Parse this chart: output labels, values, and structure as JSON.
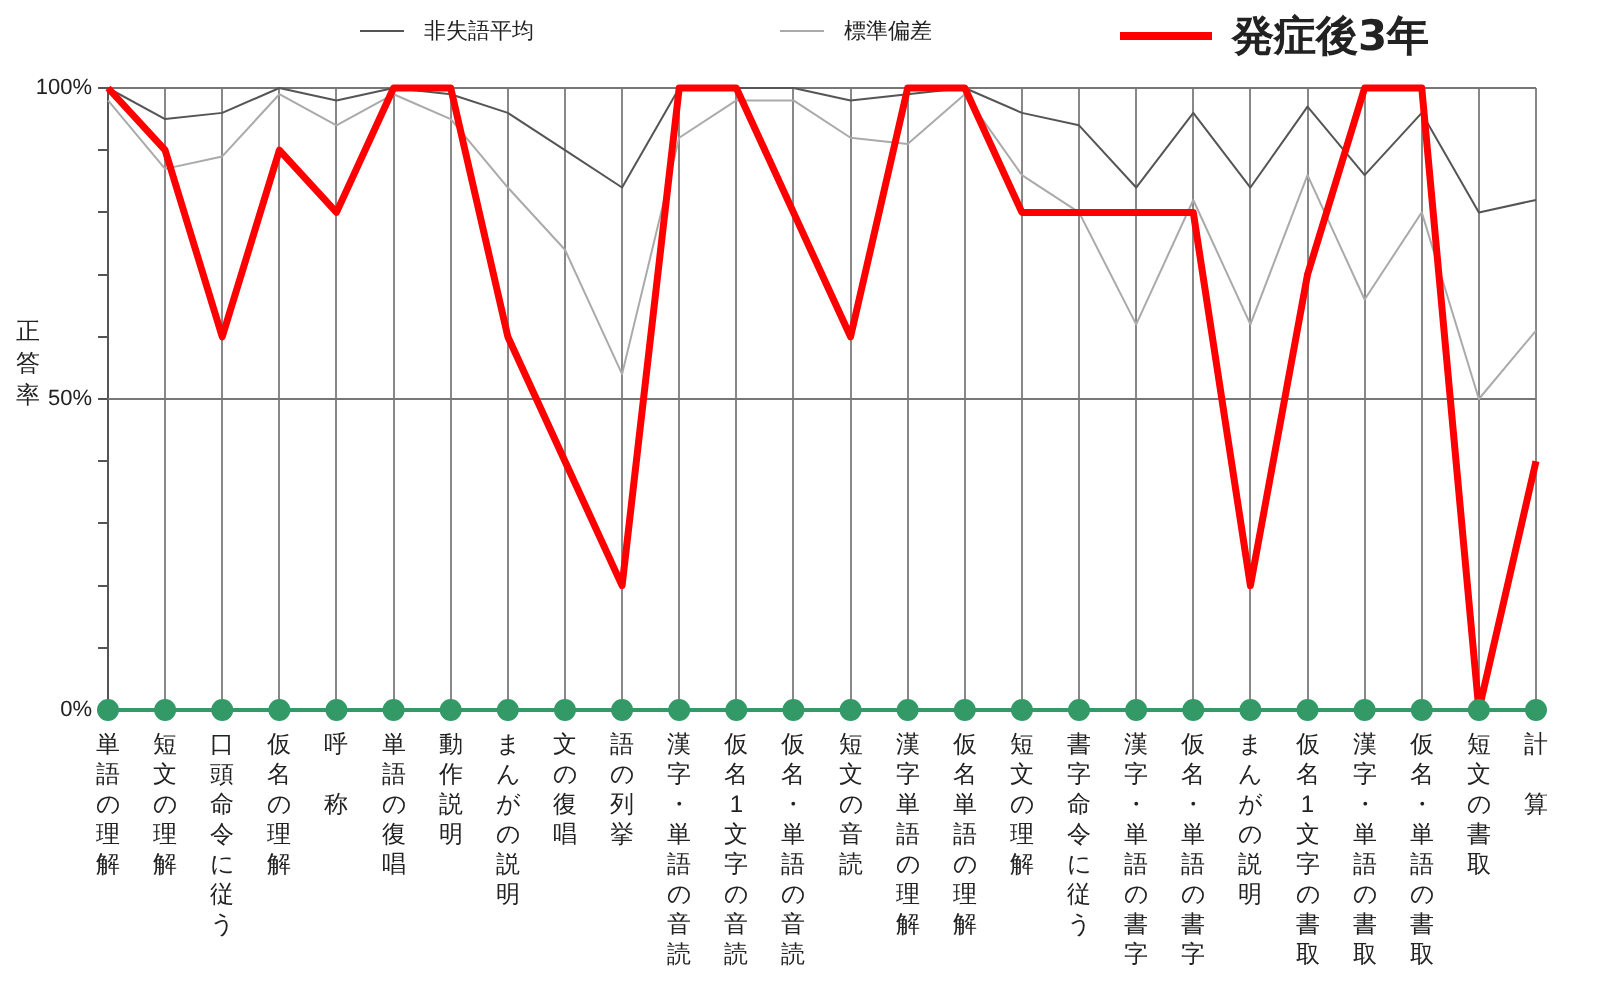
{
  "chart_data": {
    "type": "line",
    "ylabel": "正答率",
    "legend": "top",
    "categories": [
      "単語の理解",
      "短文の理解",
      "口頭命令に従う",
      "仮名の理解",
      "呼称",
      "単語の復唱",
      "動作説明",
      "まんがの説明",
      "文の復唱",
      "語の列挙",
      "漢字・単語の音読",
      "仮名1文字の音読",
      "仮名・単語の音読",
      "短文の音読",
      "漢字単語の理解",
      "仮名単語の理解",
      "短文の理解",
      "書字命令に従う",
      "漢字・単語の書字",
      "仮名・単語の書字",
      "まんがの説明",
      "仮名1文字の書取",
      "漢字・単語の書取",
      "仮名・単語の書取",
      "短文の書取",
      "計算"
    ],
    "ylim": [
      0,
      100
    ],
    "yticks": [
      {
        "value": 0,
        "label": "0%"
      },
      {
        "value": 10,
        "label": null
      },
      {
        "value": 20,
        "label": null
      },
      {
        "value": 30,
        "label": null
      },
      {
        "value": 40,
        "label": null
      },
      {
        "value": 50,
        "label": "50%"
      },
      {
        "value": 60,
        "label": null
      },
      {
        "value": 70,
        "label": null
      },
      {
        "value": 80,
        "label": null
      },
      {
        "value": 90,
        "label": null
      },
      {
        "value": 100,
        "label": "100%"
      }
    ],
    "grid": "x",
    "ref_lines": [
      {
        "axis": "y",
        "value": 50,
        "color": "#777777"
      }
    ],
    "series": [
      {
        "name": "非失語平均",
        "color": "#555555",
        "marker": "none",
        "values": [
          100,
          95,
          96,
          100,
          98,
          100,
          99,
          96,
          90,
          84,
          100,
          100,
          100,
          98,
          99,
          100,
          96,
          94,
          84,
          96,
          84,
          97,
          86,
          96,
          80,
          82
        ]
      },
      {
        "name": "標準偏差",
        "color": "#aaaaaa",
        "marker": "none",
        "values": [
          98,
          87,
          89,
          99,
          94,
          99,
          95,
          84,
          74,
          54,
          92,
          98,
          98,
          92,
          91,
          99,
          86,
          80,
          62,
          82,
          62,
          86,
          66,
          80,
          50,
          61
        ]
      },
      {
        "name": "発症後3年",
        "color": "#ff0000",
        "marker": "none",
        "values": [
          100,
          90,
          60,
          90,
          80,
          100,
          100,
          60,
          40,
          20,
          100,
          100,
          80,
          60,
          100,
          100,
          80,
          80,
          80,
          80,
          20,
          70,
          100,
          100,
          0,
          40
        ]
      },
      {
        "color": "#339966",
        "marker": "circle",
        "values": [
          0,
          0,
          0,
          0,
          0,
          0,
          0,
          0,
          0,
          0,
          0,
          0,
          0,
          0,
          0,
          0,
          0,
          0,
          0,
          0,
          0,
          0,
          0,
          0,
          0,
          0
        ]
      }
    ]
  }
}
